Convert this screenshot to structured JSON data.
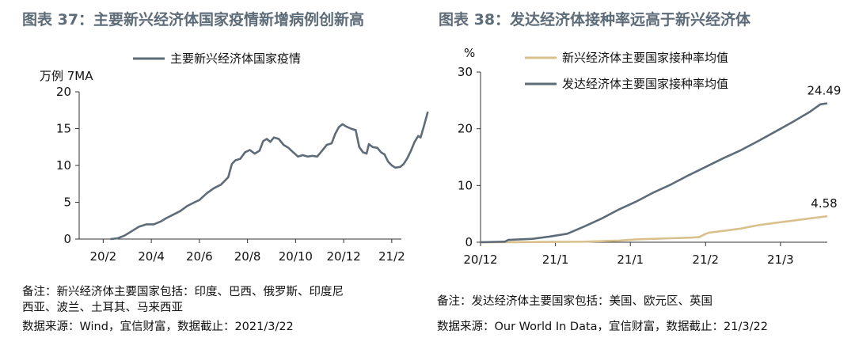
{
  "left": {
    "title": "图表 37：主要新兴经济体国家疫情新增病例创新高",
    "note_line1": "备注：新兴经济体主要国家包括：印度、巴西、俄罗斯、印度尼",
    "note_line2": "西亚、波兰、土耳其、马来西亚",
    "source": "数据来源：Wind，宜信财富，数据截止：2021/3/22"
  },
  "right": {
    "title": "图表 38：发达经济体接种率远高于新兴经济体",
    "note_line1": "备注：发达经济体主要国家包括：美国、欧元区、英国",
    "source": "数据来源：Our World In Data，宜信财富，数据截止：21/3/22"
  },
  "chart_data": [
    {
      "type": "line",
      "ylabel": "万例 7MA",
      "ylim": [
        0,
        20
      ],
      "yticks": [
        0,
        5,
        10,
        15,
        20
      ],
      "xlim": [
        0,
        13.4
      ],
      "x_ticks": [
        {
          "x": 1,
          "label": "20/2"
        },
        {
          "x": 3,
          "label": "20/4"
        },
        {
          "x": 5,
          "label": "20/6"
        },
        {
          "x": 7,
          "label": "20/8"
        },
        {
          "x": 9,
          "label": "20/10"
        },
        {
          "x": 11,
          "label": "20/12"
        },
        {
          "x": 13,
          "label": "21/2"
        }
      ],
      "legend_position": "top",
      "series": [
        {
          "name": "主要新兴经济体国家疫情",
          "color": "#5d6c78",
          "points": [
            [
              1.3,
              0
            ],
            [
              1.6,
              0.1
            ],
            [
              1.9,
              0.5
            ],
            [
              2.2,
              1.1
            ],
            [
              2.5,
              1.7
            ],
            [
              2.8,
              2.0
            ],
            [
              3.1,
              2.0
            ],
            [
              3.4,
              2.4
            ],
            [
              3.6,
              2.8
            ],
            [
              3.9,
              3.3
            ],
            [
              4.2,
              3.8
            ],
            [
              4.5,
              4.5
            ],
            [
              4.8,
              5.0
            ],
            [
              5.0,
              5.3
            ],
            [
              5.3,
              6.2
            ],
            [
              5.6,
              6.9
            ],
            [
              5.9,
              7.4
            ],
            [
              6.2,
              8.4
            ],
            [
              6.35,
              10.2
            ],
            [
              6.5,
              10.7
            ],
            [
              6.7,
              10.9
            ],
            [
              6.9,
              11.8
            ],
            [
              7.1,
              12.1
            ],
            [
              7.3,
              11.6
            ],
            [
              7.5,
              12.0
            ],
            [
              7.65,
              13.3
            ],
            [
              7.8,
              13.6
            ],
            [
              7.95,
              13.2
            ],
            [
              8.1,
              13.8
            ],
            [
              8.3,
              13.6
            ],
            [
              8.5,
              12.8
            ],
            [
              8.7,
              12.4
            ],
            [
              8.9,
              11.8
            ],
            [
              9.1,
              11.2
            ],
            [
              9.3,
              11.4
            ],
            [
              9.5,
              11.2
            ],
            [
              9.7,
              11.3
            ],
            [
              9.9,
              11.2
            ],
            [
              10.1,
              12.0
            ],
            [
              10.3,
              12.8
            ],
            [
              10.5,
              13.0
            ],
            [
              10.65,
              14.3
            ],
            [
              10.8,
              15.2
            ],
            [
              10.95,
              15.6
            ],
            [
              11.1,
              15.3
            ],
            [
              11.3,
              15.0
            ],
            [
              11.5,
              14.8
            ],
            [
              11.65,
              12.5
            ],
            [
              11.8,
              11.8
            ],
            [
              11.95,
              11.6
            ],
            [
              12.05,
              12.9
            ],
            [
              12.2,
              12.5
            ],
            [
              12.4,
              12.4
            ],
            [
              12.55,
              11.8
            ],
            [
              12.7,
              11.5
            ],
            [
              12.85,
              10.5
            ],
            [
              13.0,
              10.0
            ],
            [
              13.15,
              9.7
            ],
            [
              13.35,
              9.8
            ],
            [
              13.5,
              10.2
            ],
            [
              13.65,
              11.0
            ],
            [
              13.8,
              12.0
            ],
            [
              13.95,
              13.2
            ],
            [
              14.1,
              14.0
            ],
            [
              14.2,
              13.8
            ],
            [
              14.35,
              15.5
            ],
            [
              14.5,
              17.3
            ]
          ]
        }
      ]
    },
    {
      "type": "line",
      "ylabel": "%",
      "ylim": [
        0,
        30
      ],
      "yticks": [
        0,
        10,
        20,
        30
      ],
      "xlim": [
        0,
        100
      ],
      "x_ticks": [
        {
          "x": 0,
          "label": "20/12"
        },
        {
          "x": 21.6,
          "label": "21/1"
        },
        {
          "x": 43.2,
          "label": "21/1"
        },
        {
          "x": 64.9,
          "label": "21/2"
        },
        {
          "x": 86.5,
          "label": "21/3"
        }
      ],
      "legend_position": "top",
      "series": [
        {
          "name": "新兴经济体主要国家接种率均值",
          "color": "#d9c18e",
          "end_label": "4.58",
          "points": [
            [
              0,
              0
            ],
            [
              10,
              0.02
            ],
            [
              20,
              0.05
            ],
            [
              30,
              0.1
            ],
            [
              40,
              0.3
            ],
            [
              45,
              0.5
            ],
            [
              50,
              0.6
            ],
            [
              55,
              0.7
            ],
            [
              60,
              0.8
            ],
            [
              63,
              0.9
            ],
            [
              65,
              1.5
            ],
            [
              66,
              1.7
            ],
            [
              70,
              2.0
            ],
            [
              75,
              2.4
            ],
            [
              80,
              3.0
            ],
            [
              85,
              3.4
            ],
            [
              90,
              3.8
            ],
            [
              95,
              4.2
            ],
            [
              100,
              4.58
            ]
          ]
        },
        {
          "name": "发达经济体主要国家接种率均值",
          "color": "#5d6c78",
          "end_label": "24.49",
          "points": [
            [
              0,
              0
            ],
            [
              7,
              0.1
            ],
            [
              8,
              0.4
            ],
            [
              15,
              0.6
            ],
            [
              20,
              1.0
            ],
            [
              25,
              1.5
            ],
            [
              30,
              2.8
            ],
            [
              35,
              4.2
            ],
            [
              40,
              5.8
            ],
            [
              45,
              7.2
            ],
            [
              50,
              8.8
            ],
            [
              55,
              10.2
            ],
            [
              60,
              11.8
            ],
            [
              65,
              13.3
            ],
            [
              70,
              14.8
            ],
            [
              75,
              16.2
            ],
            [
              80,
              17.8
            ],
            [
              85,
              19.5
            ],
            [
              90,
              21.2
            ],
            [
              95,
              23.0
            ],
            [
              98,
              24.3
            ],
            [
              100,
              24.49
            ]
          ]
        }
      ]
    }
  ]
}
